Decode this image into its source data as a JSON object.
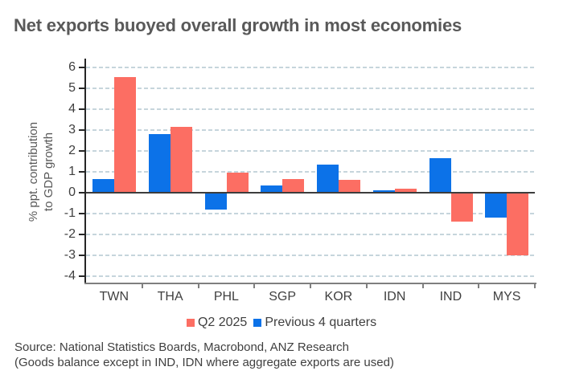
{
  "title": "Net exports buoyed overall growth in most economies",
  "chart_data": {
    "type": "bar",
    "title": "Net exports buoyed overall growth in most economies",
    "ylabel": "% ppt. contribution to GDP growth",
    "ylabel_line1": "% ppt. contribution",
    "ylabel_line2": "to GDP growth",
    "xlabel": "",
    "categories": [
      "TWN",
      "THA",
      "PHL",
      "SGP",
      "KOR",
      "IDN",
      "IND",
      "MYS"
    ],
    "series": [
      {
        "name": "Q2 2025",
        "color": "#fc6e63",
        "values": [
          5.55,
          3.15,
          0.95,
          0.65,
          0.6,
          0.2,
          -1.4,
          -3.0
        ]
      },
      {
        "name": "Previous 4 quarters",
        "color": "#0c72e8",
        "values": [
          0.65,
          2.8,
          -0.8,
          0.35,
          1.35,
          0.1,
          1.65,
          -1.2
        ]
      }
    ],
    "bar_order_in_group": [
      "Previous 4 quarters",
      "Q2 2025"
    ],
    "ylim": [
      -4.35,
      6.35
    ],
    "yticks": [
      6,
      5,
      4,
      3,
      2,
      1,
      0,
      -1,
      -2,
      -3,
      -4
    ],
    "grid": "horizontal dashed",
    "legend_position": "bottom"
  },
  "legend": [
    {
      "label": "Q2 2025",
      "color": "#fc6e63"
    },
    {
      "label": "Previous 4 quarters",
      "color": "#0c72e8"
    }
  ],
  "source_line1": "Source: National Statistics Boards, Macrobond, ANZ Research",
  "source_line2": "(Goods balance except in IND, IDN where aggregate exports are used)"
}
